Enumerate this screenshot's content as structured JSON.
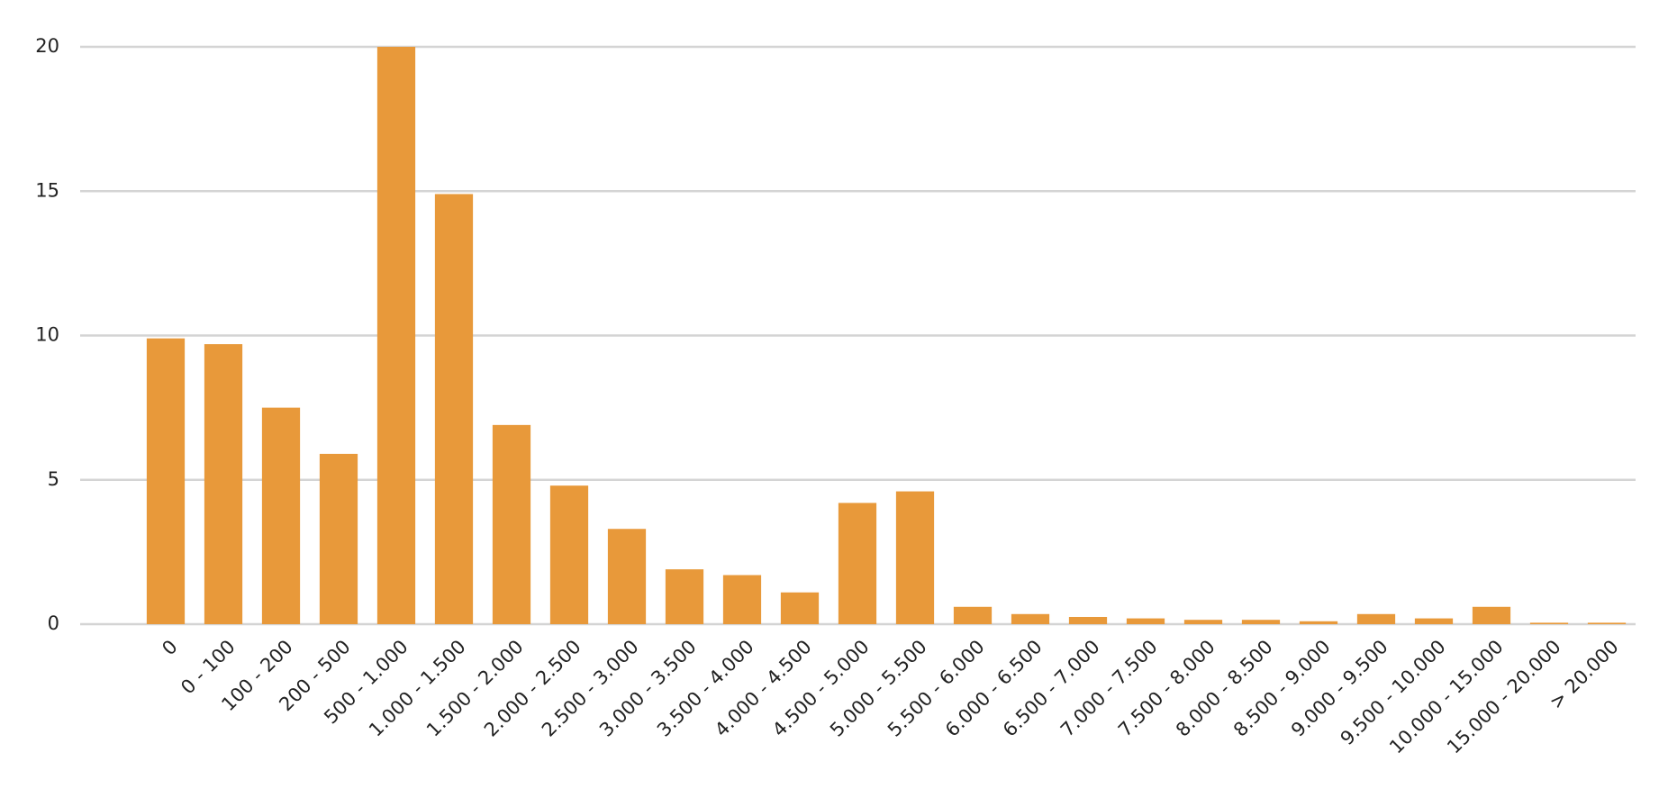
{
  "chart_data": {
    "type": "bar",
    "categories": [
      "0",
      "0 - 100",
      "100 - 200",
      "200 - 500",
      "500 - 1.000",
      "1.000 - 1.500",
      "1.500 - 2.000",
      "2.000 - 2.500",
      "2.500 - 3.000",
      "3.000 - 3.500",
      "3.500 - 4.000",
      "4.000 - 4.500",
      "4.500 - 5.000",
      "5.000 - 5.500",
      "5.500 - 6.000",
      "6.000 - 6.500",
      "6.500 - 7.000",
      "7.000 - 7.500",
      "7.500 - 8.000",
      "8.000 - 8.500",
      "8.500 - 9.000",
      "9.000 - 9.500",
      "9.500 - 10.000",
      "10.000 - 15.000",
      "15.000 - 20.000",
      "> 20.000"
    ],
    "values": [
      9.9,
      9.7,
      7.5,
      5.9,
      20,
      14.9,
      6.9,
      4.8,
      3.3,
      1.9,
      1.7,
      1.1,
      4.2,
      4.6,
      0.6,
      0.35,
      0.25,
      0.2,
      0.15,
      0.15,
      0.1,
      0.35,
      0.2,
      0.6,
      0.05,
      0.05
    ],
    "color": "#e8993a",
    "ylim": [
      0,
      20
    ],
    "yticks": [
      0,
      5,
      10,
      15,
      20
    ],
    "grid": true
  }
}
